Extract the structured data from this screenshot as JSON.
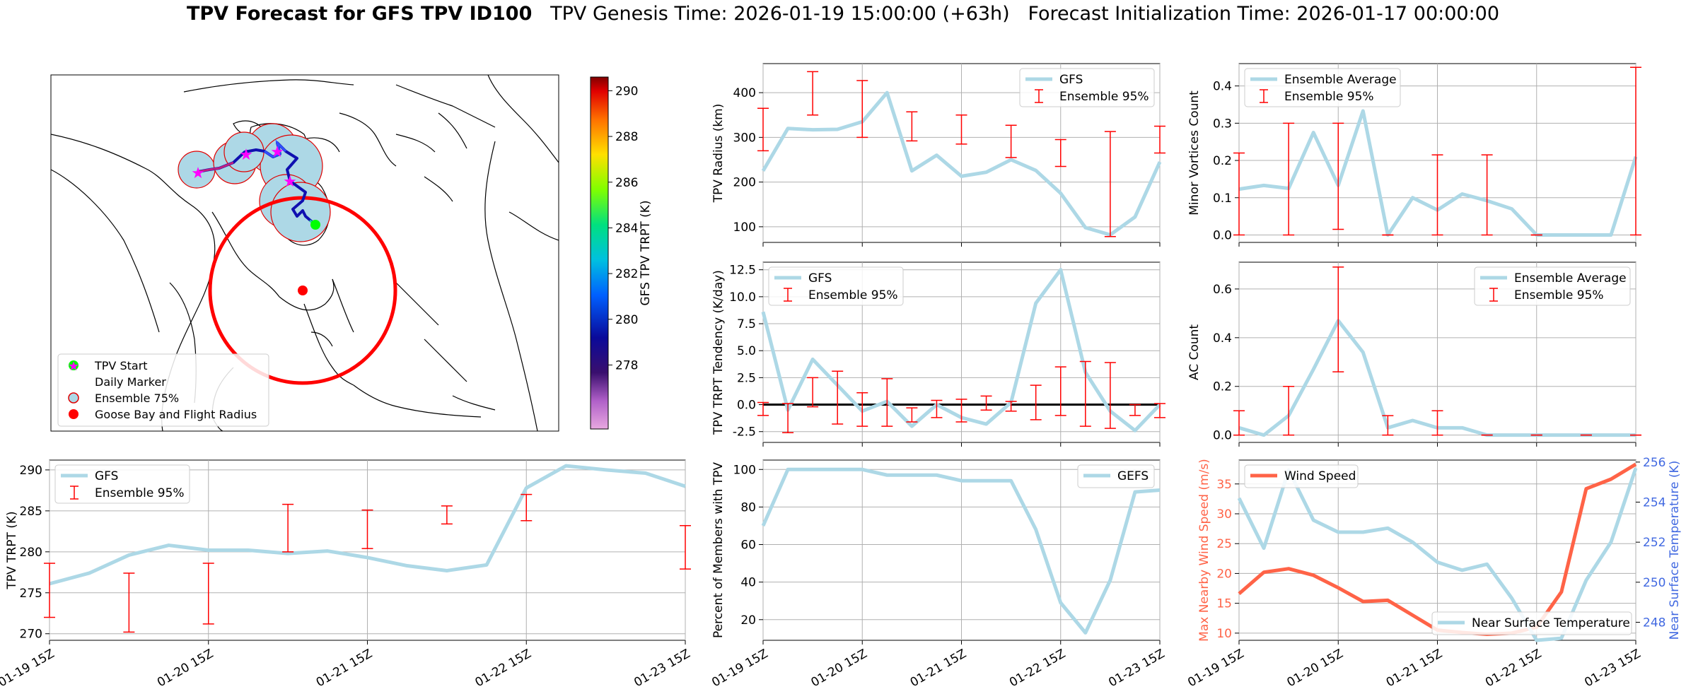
{
  "title": {
    "bold": "TPV Forecast for GFS TPV ID100",
    "genesis": "TPV Genesis Time: 2026-01-19 15:00:00 (+63h)",
    "init": "Forecast Initialization Time: 2026-01-17 00:00:00"
  },
  "map": {
    "legend": [
      "TPV Start",
      "Daily Marker",
      "Ensemble 75%",
      "Goose Bay and Flight Radius"
    ],
    "colorbar_label": "GFS TPV TRPT (K)",
    "colorbar_ticks": [
      278,
      280,
      282,
      284,
      286,
      288,
      290
    ]
  },
  "x_tick_labels": [
    "01-19 15Z",
    "01-20 15Z",
    "01-21 15Z",
    "01-22 15Z",
    "01-23 15Z"
  ],
  "chart_data": [
    {
      "id": "radius",
      "type": "line",
      "ylabel": "TPV Radius (km)",
      "ylim": [
        65,
        465
      ],
      "yticks": [
        100,
        200,
        300,
        400
      ],
      "x_hours": [
        0,
        6,
        12,
        18,
        24,
        30,
        36,
        42,
        48,
        54,
        60,
        66,
        72,
        78,
        84,
        90,
        96
      ],
      "series": [
        {
          "name": "GFS",
          "values": [
            225,
            320,
            317,
            318,
            335,
            400,
            225,
            260,
            213,
            222,
            250,
            226,
            175,
            98,
            82,
            122,
            245
          ]
        }
      ],
      "error_bars": {
        "name": "Ensemble 95%",
        "x_hours": [
          0,
          12,
          24,
          36,
          48,
          60,
          72,
          84,
          96
        ],
        "low": [
          270,
          350,
          300,
          292,
          285,
          255,
          235,
          78,
          265
        ],
        "high": [
          365,
          447,
          427,
          357,
          350,
          327,
          295,
          313,
          325
        ]
      },
      "legend_pos": "upper right"
    },
    {
      "id": "minor",
      "type": "line",
      "ylabel": "Minor Vortices Count",
      "ylim": [
        -0.02,
        0.46
      ],
      "yticks": [
        0.0,
        0.1,
        0.2,
        0.3,
        0.4
      ],
      "x_hours": [
        0,
        6,
        12,
        18,
        24,
        30,
        36,
        42,
        48,
        54,
        60,
        66,
        72,
        78,
        84,
        90,
        96
      ],
      "series": [
        {
          "name": "Ensemble Average",
          "values": [
            0.123,
            0.133,
            0.125,
            0.275,
            0.133,
            0.333,
            0.0,
            0.1,
            0.067,
            0.11,
            0.092,
            0.07,
            0.0,
            0.0,
            0.0,
            0.0,
            0.21
          ]
        }
      ],
      "error_bars": {
        "name": "Ensemble 95%",
        "x_hours": [
          0,
          12,
          24,
          36,
          48,
          60,
          72,
          96
        ],
        "low": [
          0.0,
          0.0,
          0.015,
          0.0,
          0.0,
          0.0,
          0.0,
          0.0
        ],
        "high": [
          0.22,
          0.3,
          0.3,
          0.0,
          0.215,
          0.215,
          0.0,
          0.45
        ]
      },
      "legend_pos": "upper left"
    },
    {
      "id": "tendency",
      "type": "line",
      "ylabel": "TPV TRPT Tendency (K/day)",
      "ylim": [
        -3.5,
        13.2
      ],
      "yticks": [
        -2.5,
        0.0,
        2.5,
        5.0,
        7.5,
        10.0,
        12.5
      ],
      "x_hours": [
        0,
        6,
        12,
        18,
        24,
        30,
        36,
        42,
        48,
        54,
        60,
        66,
        72,
        78,
        84,
        90,
        96
      ],
      "series": [
        {
          "name": "GFS",
          "values": [
            8.6,
            -0.5,
            4.2,
            1.8,
            -0.6,
            0.3,
            -2.0,
            0.0,
            -1.2,
            -1.8,
            0.2,
            9.4,
            12.5,
            3.0,
            -0.6,
            -2.4,
            0.0
          ]
        }
      ],
      "zero_line": true,
      "error_bars": {
        "name": "Ensemble 95%",
        "x_hours": [
          0,
          6,
          12,
          18,
          24,
          30,
          36,
          42,
          48,
          54,
          60,
          66,
          72,
          78,
          84,
          90,
          96
        ],
        "low": [
          -1.0,
          -2.6,
          -0.2,
          -1.8,
          -2.0,
          -2.0,
          -1.6,
          -1.2,
          -1.6,
          -0.5,
          -0.6,
          -1.4,
          -1.0,
          -2.0,
          -2.2,
          -1.0,
          -1.2
        ],
        "high": [
          0.2,
          0.1,
          2.5,
          3.1,
          1.1,
          2.4,
          -0.3,
          0.4,
          0.5,
          0.8,
          0.3,
          1.8,
          3.5,
          4.0,
          3.9,
          0.0,
          0.1
        ]
      },
      "legend_pos": "upper left"
    },
    {
      "id": "ac",
      "type": "line",
      "ylabel": "AC Count",
      "ylim": [
        -0.03,
        0.71
      ],
      "yticks": [
        0.0,
        0.2,
        0.4,
        0.6
      ],
      "x_hours": [
        0,
        6,
        12,
        18,
        24,
        30,
        36,
        42,
        48,
        54,
        60,
        66,
        72,
        78,
        84,
        90,
        96
      ],
      "series": [
        {
          "name": "Ensemble Average",
          "values": [
            0.03,
            0.0,
            0.08,
            0.27,
            0.47,
            0.34,
            0.03,
            0.06,
            0.03,
            0.03,
            0.0,
            0.0,
            0.0,
            0.0,
            0.0,
            0.0,
            0.0
          ]
        }
      ],
      "error_bars": {
        "name": "Ensemble 95%",
        "x_hours": [
          0,
          12,
          24,
          36,
          48,
          60,
          72,
          84,
          96
        ],
        "low": [
          0.0,
          0.0,
          0.26,
          0.0,
          0.0,
          0.0,
          0.0,
          0.0,
          0.0
        ],
        "high": [
          0.1,
          0.2,
          0.69,
          0.08,
          0.1,
          0.0,
          0.0,
          0.0,
          0.0
        ]
      },
      "legend_pos": "upper right"
    },
    {
      "id": "trpt",
      "type": "line",
      "ylabel": "TPV TRPT (K)",
      "ylim": [
        269.2,
        291.2
      ],
      "yticks": [
        270,
        275,
        280,
        285,
        290
      ],
      "x_hours": [
        0,
        6,
        12,
        18,
        24,
        30,
        36,
        42,
        48,
        54,
        60,
        66,
        72,
        78,
        84,
        90,
        96
      ],
      "series": [
        {
          "name": "GFS",
          "values": [
            276.1,
            277.4,
            279.6,
            280.8,
            280.2,
            280.2,
            279.8,
            280.1,
            279.3,
            278.3,
            277.7,
            278.4,
            287.8,
            290.5,
            290.0,
            289.6,
            288.0
          ]
        }
      ],
      "error_bars": {
        "name": "Ensemble 95%",
        "x_hours": [
          0,
          12,
          24,
          36,
          48,
          60,
          72,
          96
        ],
        "low": [
          272.0,
          270.2,
          271.2,
          280.0,
          280.4,
          283.4,
          283.8,
          277.9
        ],
        "high": [
          278.6,
          277.4,
          278.6,
          285.8,
          285.1,
          285.6,
          287.0,
          283.2
        ]
      },
      "legend_pos": "upper left"
    },
    {
      "id": "percent",
      "type": "line",
      "ylabel": "Percent of Members with TPV",
      "ylim": [
        9,
        105
      ],
      "yticks": [
        20,
        40,
        60,
        80,
        100
      ],
      "x_hours": [
        0,
        6,
        12,
        18,
        24,
        30,
        36,
        42,
        48,
        54,
        60,
        66,
        72,
        78,
        84,
        90,
        96
      ],
      "series": [
        {
          "name": "GEFS",
          "values": [
            70,
            100,
            100,
            100,
            100,
            97,
            97,
            97,
            94,
            94,
            94,
            68,
            29,
            13,
            41,
            88,
            89
          ]
        }
      ],
      "legend_pos": "upper right"
    },
    {
      "id": "wind",
      "type": "line",
      "ylabel": "Max Nearby Wind Speed (m/s)",
      "ylabel_right": "Near Surface Temperature (K)",
      "ylim": [
        8.8,
        39
      ],
      "yticks": [
        10,
        15,
        20,
        25,
        30,
        35
      ],
      "ylim_right": [
        247.1,
        256.1
      ],
      "yticks_right": [
        248,
        250,
        252,
        254,
        256
      ],
      "x_hours": [
        0,
        6,
        12,
        18,
        24,
        30,
        36,
        42,
        48,
        54,
        60,
        66,
        72,
        78,
        84,
        90,
        96
      ],
      "series": [
        {
          "name": "Wind Speed",
          "values": [
            16.6,
            20.2,
            20.8,
            19.7,
            17.6,
            15.3,
            15.5,
            13.0,
            10.5,
            10.1,
            9.8,
            10.0,
            11.0,
            16.9,
            34.2,
            35.8,
            38.3
          ]
        },
        {
          "name": "Near Surface Temperature",
          "values": [
            254.2,
            251.7,
            255.6,
            253.1,
            252.5,
            252.5,
            252.7,
            252.0,
            251.0,
            250.6,
            250.9,
            249.2,
            247.0,
            247.2,
            250.1,
            252.0,
            255.7
          ]
        }
      ],
      "legend_pos": "upper left / lower right"
    }
  ],
  "colors": {
    "line": "#add8e6",
    "errorbar": "#ff0000",
    "wind": "#ff6347",
    "temp_axis": "#4169e1",
    "grid": "#b0b0b0"
  }
}
